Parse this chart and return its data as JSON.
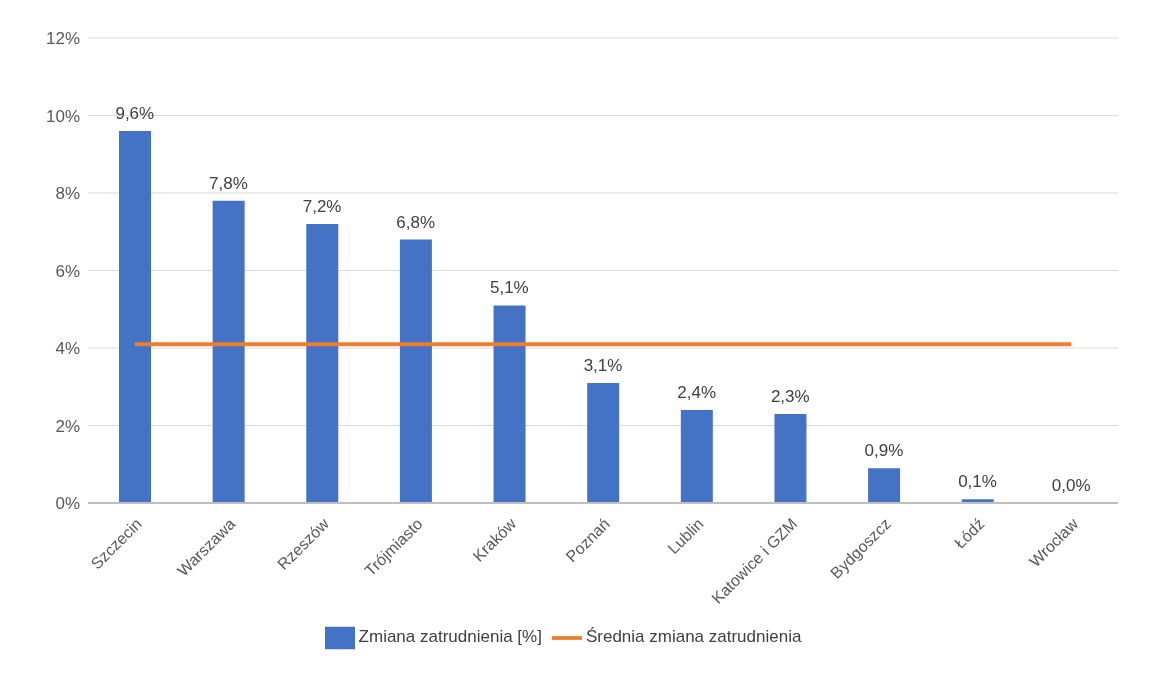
{
  "chart_data": {
    "type": "bar",
    "categories": [
      "Szczecin",
      "Warszawa",
      "Rzeszów",
      "Trójmiasto",
      "Kraków",
      "Poznań",
      "Lublin",
      "Katowice i GZM",
      "Bydgoszcz",
      "Łódź",
      "Wrocław"
    ],
    "series": [
      {
        "name": "Zmiana zatrudnienia [%]",
        "color": "#4472c4",
        "values": [
          9.6,
          7.8,
          7.2,
          6.8,
          5.1,
          3.1,
          2.4,
          2.3,
          0.9,
          0.1,
          0.0
        ],
        "value_labels": [
          "9,6%",
          "7,8%",
          "7,2%",
          "6,8%",
          "5,1%",
          "3,1%",
          "2,4%",
          "2,3%",
          "0,9%",
          "0,1%",
          "0,0%"
        ]
      },
      {
        "name": "Średnia zmiana zatrudnienia",
        "type": "line",
        "color": "#ed7d31",
        "values": [
          4.1,
          4.1,
          4.1,
          4.1,
          4.1,
          4.1,
          4.1,
          4.1,
          4.1,
          4.1,
          4.1
        ]
      }
    ],
    "ylim": [
      0,
      12
    ],
    "yticks": [
      {
        "value": 0,
        "label": "0%"
      },
      {
        "value": 2,
        "label": "2%"
      },
      {
        "value": 4,
        "label": "4%"
      },
      {
        "value": 6,
        "label": "6%"
      },
      {
        "value": 8,
        "label": "8%"
      },
      {
        "value": 10,
        "label": "10%"
      },
      {
        "value": 12,
        "label": "12%"
      }
    ],
    "grid": "y",
    "legend": "bottom",
    "marker": "none",
    "line_style": "solid"
  }
}
